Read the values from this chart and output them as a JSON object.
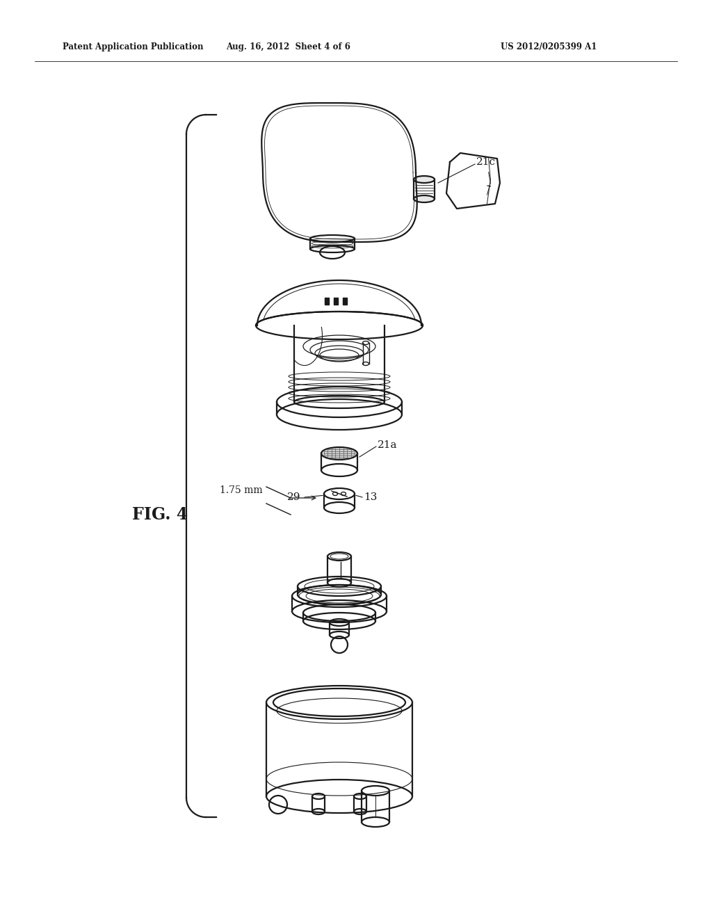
{
  "header_left": "Patent Application Publication",
  "header_mid": "Aug. 16, 2012  Sheet 4 of 6",
  "header_right": "US 2012/0205399 A1",
  "fig_label": "FIG. 4",
  "label_21c": "21c",
  "label_21a": "21a",
  "label_29": "29",
  "label_13": "13",
  "label_mm": "1.75 mm",
  "bg_color": "#ffffff",
  "line_color": "#1a1a1a",
  "line_width": 1.6,
  "thin_line": 0.8
}
